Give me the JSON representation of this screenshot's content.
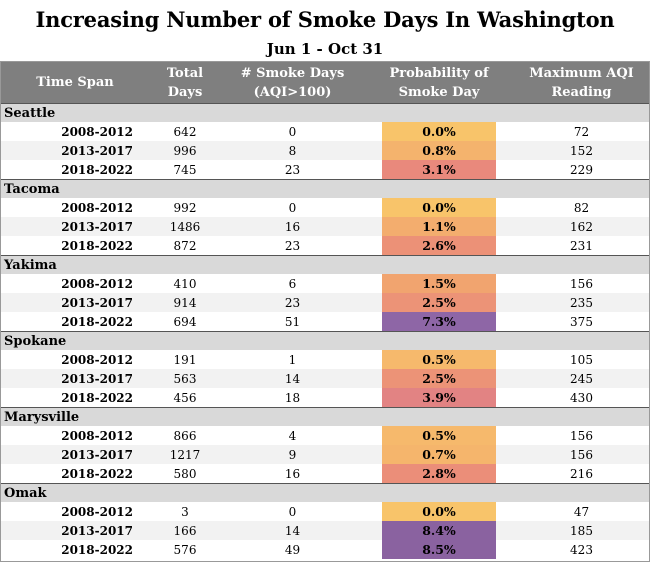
{
  "chart_data": {
    "type": "table",
    "title": "Increasing Number of Smoke Days In Washington",
    "subtitle": "Jun 1 - Oct 31",
    "columns": [
      "Time Span",
      "Total Days",
      "# Smoke Days (AQI>100)",
      "Probability of Smoke Day",
      "Maximum AQI Reading"
    ],
    "header_lines": [
      [
        "Time Span"
      ],
      [
        "Total",
        "Days"
      ],
      [
        "# Smoke Days",
        "(AQI>100)"
      ],
      [
        "Probability of",
        "Smoke Day"
      ],
      [
        "Maximum AQI",
        "Reading"
      ]
    ],
    "groups": [
      {
        "name": "Seattle",
        "rows": [
          {
            "span": "2008-2012",
            "total_days": "642",
            "smoke_days": "0",
            "probability": "0.0%",
            "prob_value": 0.0,
            "max_aqi": "72"
          },
          {
            "span": "2013-2017",
            "total_days": "996",
            "smoke_days": "8",
            "probability": "0.8%",
            "prob_value": 0.8,
            "max_aqi": "152"
          },
          {
            "span": "2018-2022",
            "total_days": "745",
            "smoke_days": "23",
            "probability": "3.1%",
            "prob_value": 3.1,
            "max_aqi": "229"
          }
        ]
      },
      {
        "name": "Tacoma",
        "rows": [
          {
            "span": "2008-2012",
            "total_days": "992",
            "smoke_days": "0",
            "probability": "0.0%",
            "prob_value": 0.0,
            "max_aqi": "82"
          },
          {
            "span": "2013-2017",
            "total_days": "1486",
            "smoke_days": "16",
            "probability": "1.1%",
            "prob_value": 1.1,
            "max_aqi": "162"
          },
          {
            "span": "2018-2022",
            "total_days": "872",
            "smoke_days": "23",
            "probability": "2.6%",
            "prob_value": 2.6,
            "max_aqi": "231"
          }
        ]
      },
      {
        "name": "Yakima",
        "rows": [
          {
            "span": "2008-2012",
            "total_days": "410",
            "smoke_days": "6",
            "probability": "1.5%",
            "prob_value": 1.5,
            "max_aqi": "156"
          },
          {
            "span": "2013-2017",
            "total_days": "914",
            "smoke_days": "23",
            "probability": "2.5%",
            "prob_value": 2.5,
            "max_aqi": "235"
          },
          {
            "span": "2018-2022",
            "total_days": "694",
            "smoke_days": "51",
            "probability": "7.3%",
            "prob_value": 7.3,
            "max_aqi": "375"
          }
        ]
      },
      {
        "name": "Spokane",
        "rows": [
          {
            "span": "2008-2012",
            "total_days": "191",
            "smoke_days": "1",
            "probability": "0.5%",
            "prob_value": 0.5,
            "max_aqi": "105"
          },
          {
            "span": "2013-2017",
            "total_days": "563",
            "smoke_days": "14",
            "probability": "2.5%",
            "prob_value": 2.5,
            "max_aqi": "245"
          },
          {
            "span": "2018-2022",
            "total_days": "456",
            "smoke_days": "18",
            "probability": "3.9%",
            "prob_value": 3.9,
            "max_aqi": "430"
          }
        ]
      },
      {
        "name": "Marysville",
        "rows": [
          {
            "span": "2008-2012",
            "total_days": "866",
            "smoke_days": "4",
            "probability": "0.5%",
            "prob_value": 0.5,
            "max_aqi": "156"
          },
          {
            "span": "2013-2017",
            "total_days": "1217",
            "smoke_days": "9",
            "probability": "0.7%",
            "prob_value": 0.7,
            "max_aqi": "156"
          },
          {
            "span": "2018-2022",
            "total_days": "580",
            "smoke_days": "16",
            "probability": "2.8%",
            "prob_value": 2.8,
            "max_aqi": "216"
          }
        ]
      },
      {
        "name": "Omak",
        "rows": [
          {
            "span": "2008-2012",
            "total_days": "3",
            "smoke_days": "0",
            "probability": "0.0%",
            "prob_value": 0.0,
            "max_aqi": "47"
          },
          {
            "span": "2013-2017",
            "total_days": "166",
            "smoke_days": "14",
            "probability": "8.4%",
            "prob_value": 8.4,
            "max_aqi": "185"
          },
          {
            "span": "2018-2022",
            "total_days": "576",
            "smoke_days": "49",
            "probability": "8.5%",
            "prob_value": 8.5,
            "max_aqi": "423"
          }
        ]
      }
    ],
    "color_scale": {
      "min_value": 0.0,
      "max_value": 8.5,
      "stops": [
        "#f8c46a",
        "#f0a070",
        "#e8847e",
        "#d48090",
        "#8f68a8",
        "#8a62a0"
      ]
    }
  }
}
